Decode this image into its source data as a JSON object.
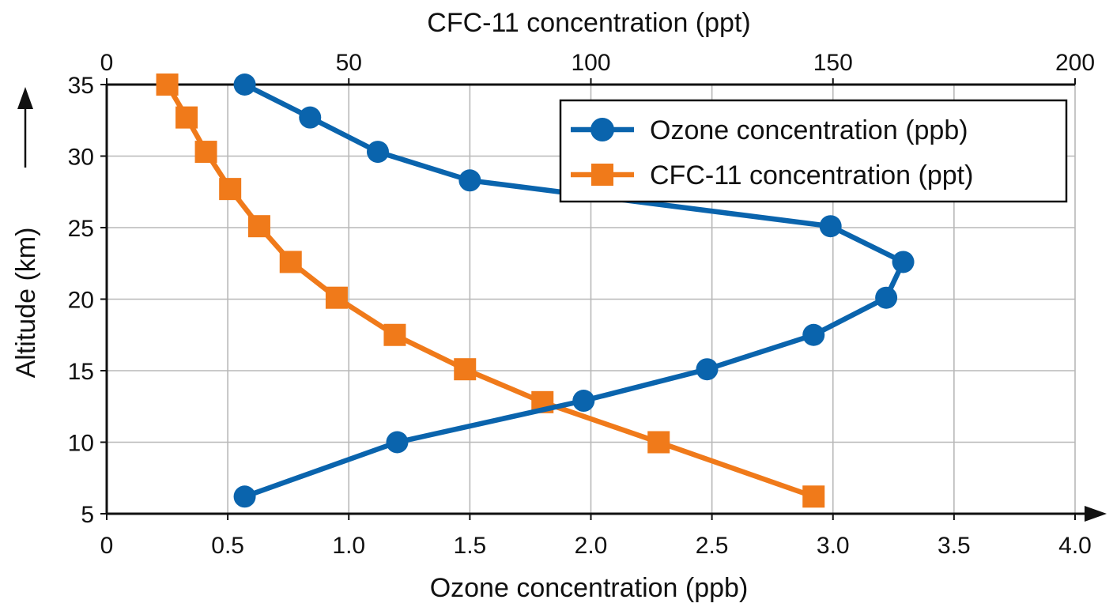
{
  "chart_data": {
    "type": "line",
    "title": "",
    "x_bottom": {
      "label": "Ozone concentration (ppb)",
      "range": [
        0,
        4.0
      ],
      "ticks": [
        0,
        0.5,
        1.0,
        1.5,
        2.0,
        2.5,
        3.0,
        3.5,
        4.0
      ],
      "tick_labels": [
        "0",
        "0.5",
        "1.0",
        "1.5",
        "2.0",
        "2.5",
        "3.0",
        "3.5",
        "4.0"
      ]
    },
    "x_top": {
      "label": "CFC-11 concentration (ppt)",
      "range": [
        0,
        200
      ],
      "ticks": [
        0,
        50,
        100,
        150,
        200
      ],
      "tick_labels": [
        "0",
        "50",
        "100",
        "150",
        "200"
      ]
    },
    "y": {
      "label": "Altitude (km)",
      "range": [
        5,
        35
      ],
      "ticks": [
        5,
        10,
        15,
        20,
        25,
        30,
        35
      ],
      "tick_labels": [
        "5",
        "10",
        "15",
        "20",
        "25",
        "30",
        "35"
      ]
    },
    "grid": true,
    "legend_position": "top-right",
    "series": [
      {
        "name": "Ozone concentration (ppb)",
        "x_axis": "bottom",
        "marker": "circle",
        "color": "#0a64ad",
        "points": [
          {
            "x": 0.57,
            "y": 6.2
          },
          {
            "x": 1.2,
            "y": 10.0
          },
          {
            "x": 1.97,
            "y": 12.9
          },
          {
            "x": 2.48,
            "y": 15.1
          },
          {
            "x": 2.92,
            "y": 17.5
          },
          {
            "x": 3.22,
            "y": 20.1
          },
          {
            "x": 3.29,
            "y": 22.6
          },
          {
            "x": 2.99,
            "y": 25.1
          },
          {
            "x": 1.5,
            "y": 28.3
          },
          {
            "x": 1.12,
            "y": 30.3
          },
          {
            "x": 0.84,
            "y": 32.7
          },
          {
            "x": 0.57,
            "y": 35.0
          }
        ]
      },
      {
        "name": "CFC-11 concentration (ppt)",
        "x_axis": "top",
        "marker": "square",
        "color": "#f07a1a",
        "points": [
          {
            "x": 146,
            "y": 6.2
          },
          {
            "x": 114,
            "y": 10.0
          },
          {
            "x": 90,
            "y": 12.8
          },
          {
            "x": 74,
            "y": 15.1
          },
          {
            "x": 59.5,
            "y": 17.5
          },
          {
            "x": 47.5,
            "y": 20.1
          },
          {
            "x": 38,
            "y": 22.6
          },
          {
            "x": 31.5,
            "y": 25.1
          },
          {
            "x": 25.5,
            "y": 27.7
          },
          {
            "x": 20.5,
            "y": 30.3
          },
          {
            "x": 16.5,
            "y": 32.7
          },
          {
            "x": 12.5,
            "y": 35.0
          }
        ]
      }
    ]
  }
}
